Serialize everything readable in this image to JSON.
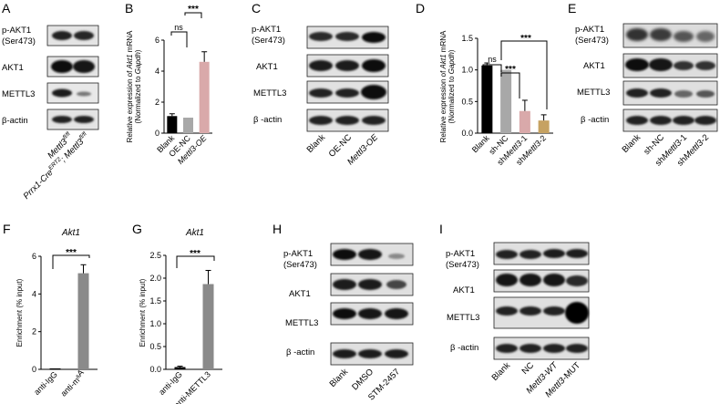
{
  "panels": {
    "A": {
      "letter": "A",
      "rows": [
        {
          "label": "p-AKT1"
        },
        {
          "label": "(Ser473)"
        },
        {
          "label": "AKT1"
        },
        {
          "label": "METTL3"
        },
        {
          "label": "β-actin"
        }
      ],
      "lanes": [
        "Mettl3",
        "fl/fl",
        "Prrx1-Cre",
        "ERT2",
        "; Mettl3",
        "fl/fl"
      ]
    },
    "B": {
      "letter": "B",
      "sig_ns": "ns",
      "sig_star": "***"
    },
    "C": {
      "letter": "C",
      "rows": [
        {
          "label": "p-AKT1"
        },
        {
          "label": "(Ser473)"
        },
        {
          "label": "AKT1"
        },
        {
          "label": "METTL3"
        },
        {
          "label": "β -actin"
        }
      ],
      "lanes": [
        "Blank",
        "OE-NC",
        "Mettl3-OE"
      ]
    },
    "D": {
      "letter": "D",
      "sig_ns": "ns",
      "sig_star1": "***",
      "sig_star2": "***"
    },
    "E": {
      "letter": "E",
      "rows": [
        {
          "label": "p-AKT1"
        },
        {
          "label": "(Ser473)"
        },
        {
          "label": "AKT1"
        },
        {
          "label": "METTL3"
        },
        {
          "label": "β -actin"
        }
      ],
      "lanes": [
        "Blank",
        "sh-NC",
        "sh",
        "Mettl3",
        "-1",
        "sh",
        "Mettl3",
        "-2"
      ]
    },
    "F": {
      "letter": "F",
      "title": "Akt1",
      "sig_star": "***"
    },
    "G": {
      "letter": "G",
      "title": "Akt1",
      "sig_star": "***"
    },
    "H": {
      "letter": "H",
      "rows": [
        {
          "label": "p-AKT1"
        },
        {
          "label": "(Ser473)"
        },
        {
          "label": "AKT1"
        },
        {
          "label": "METTL3"
        },
        {
          "label": "β -actin"
        }
      ],
      "lanes": [
        "Blank",
        "DMSO",
        "STM-2457"
      ]
    },
    "I": {
      "letter": "I",
      "rows": [
        {
          "label": "p-AKT1"
        },
        {
          "label": "(Ser473)"
        },
        {
          "label": "AKT1"
        },
        {
          "label": "METTL3"
        },
        {
          "label": "β -actin"
        }
      ],
      "lanes": [
        "Blank",
        "NC",
        "Mettl3",
        "-WT",
        "Mettl3",
        "-MUT"
      ]
    }
  },
  "chart_data": [
    {
      "id": "B",
      "type": "bar",
      "categories": [
        "Blank",
        "OE-NC",
        "Mettl3-OE"
      ],
      "category_labels": [
        {
          "parts": [
            {
              "text": "Blank",
              "italic": false
            }
          ]
        },
        {
          "parts": [
            {
              "text": "OE-NC",
              "italic": false
            }
          ]
        },
        {
          "parts": [
            {
              "text": "Mettl3",
              "italic": true
            },
            {
              "text": "-OE",
              "italic": true
            }
          ]
        }
      ],
      "values": [
        1.1,
        1.0,
        4.6
      ],
      "errors": [
        0.15,
        0.0,
        0.65
      ],
      "colors": [
        "#000000",
        "#a8a8a8",
        "#d9a9aa"
      ],
      "ylabel_line1": [
        "Relative expression of ",
        "Akt1",
        " mRNA"
      ],
      "ylabel_line2": [
        "(Normalized to ",
        "Gapdh",
        ")"
      ],
      "ylim": [
        0,
        6
      ],
      "yticks": [
        "0",
        "2",
        "4",
        "6"
      ],
      "grid": false
    },
    {
      "id": "D",
      "type": "bar",
      "categories": [
        "Blank",
        "sh-NC",
        "shMettl3-1",
        "shMettl3-2"
      ],
      "category_labels": [
        {
          "parts": [
            {
              "text": "Blank",
              "italic": false
            }
          ]
        },
        {
          "parts": [
            {
              "text": "sh-NC",
              "italic": false
            }
          ]
        },
        {
          "parts": [
            {
              "text": "sh",
              "italic": false
            },
            {
              "text": "Mettl3",
              "italic": true
            },
            {
              "text": "-1",
              "italic": false
            }
          ]
        },
        {
          "parts": [
            {
              "text": "sh",
              "italic": false
            },
            {
              "text": "Mettl3",
              "italic": true
            },
            {
              "text": "-2",
              "italic": false
            }
          ]
        }
      ],
      "values": [
        1.07,
        1.0,
        0.35,
        0.2
      ],
      "errors": [
        0.04,
        0.0,
        0.17,
        0.09
      ],
      "colors": [
        "#000000",
        "#a8a8a8",
        "#d9a9aa",
        "#c6a262"
      ],
      "ylabel_line1": [
        "Relative expression of ",
        "Akt1",
        " mRNA"
      ],
      "ylabel_line2": [
        "(Normalized to ",
        "Gapdh",
        ")"
      ],
      "ylim": [
        0,
        1.5
      ],
      "yticks": [
        "0.0",
        "0.5",
        "1.0",
        "1.5"
      ],
      "grid": false
    },
    {
      "id": "F",
      "type": "bar",
      "categories": [
        "anti-IgG",
        "anti-m6A"
      ],
      "category_labels": [
        {
          "parts": [
            {
              "text": "anti-IgG",
              "italic": false
            }
          ]
        },
        {
          "parts": [
            {
              "text": "anti-m",
              "italic": false
            },
            {
              "text": "6",
              "sup": true
            },
            {
              "text": "A",
              "italic": false
            }
          ]
        }
      ],
      "values": [
        0.05,
        5.1
      ],
      "errors": [
        0.0,
        0.45
      ],
      "colors": [
        "#000000",
        "#8a8a8a"
      ],
      "ylabel": "Enrichment (% input)",
      "ylim": [
        0,
        6
      ],
      "yticks": [
        "0",
        "2",
        "4",
        "6"
      ],
      "grid": false
    },
    {
      "id": "G",
      "type": "bar",
      "categories": [
        "anti-IgG",
        "anti-METTL3"
      ],
      "category_labels": [
        {
          "parts": [
            {
              "text": "anti-IgG",
              "italic": false
            }
          ]
        },
        {
          "parts": [
            {
              "text": "anti-METTL3",
              "italic": false
            }
          ]
        }
      ],
      "values": [
        0.05,
        1.87
      ],
      "errors": [
        0.02,
        0.3
      ],
      "colors": [
        "#000000",
        "#8a8a8a"
      ],
      "ylabel": "Enrichment (% input)",
      "ylim": [
        0,
        2.5
      ],
      "yticks": [
        "0.0",
        "0.5",
        "1.0",
        "1.5",
        "2.0",
        "2.5"
      ],
      "grid": false
    }
  ]
}
